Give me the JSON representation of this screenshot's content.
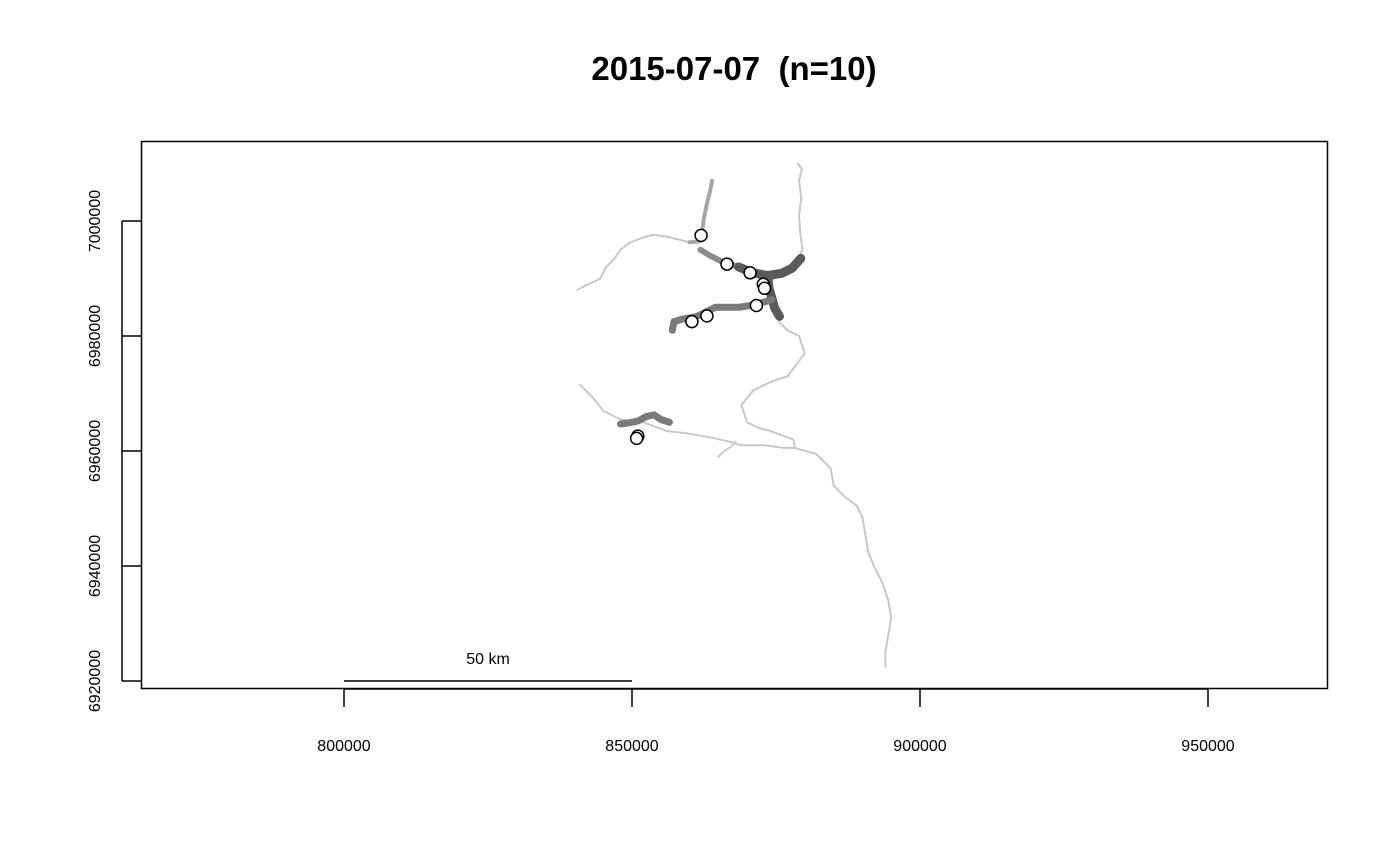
{
  "title": "2015-07-07  (n=10)",
  "chart_data": {
    "type": "scatter",
    "title": "2015-07-07  (n=10)",
    "xlabel": "",
    "ylabel": "",
    "xlim": [
      765000,
      970000
    ],
    "ylim": [
      6918000,
      7011000
    ],
    "x_ticks": [
      {
        "value": 800000,
        "label": "800000"
      },
      {
        "value": 850000,
        "label": "850000"
      },
      {
        "value": 900000,
        "label": "900000"
      },
      {
        "value": 950000,
        "label": "950000"
      }
    ],
    "y_ticks": [
      {
        "value": 6920000,
        "label": "6920000"
      },
      {
        "value": 6940000,
        "label": "6940000"
      },
      {
        "value": 6960000,
        "label": "6960000"
      },
      {
        "value": 6980000,
        "label": "6980000"
      },
      {
        "value": 7000000,
        "label": "7000000"
      }
    ],
    "grid": false,
    "scale_bar": {
      "label": "50 km",
      "x": [
        800000,
        850000
      ],
      "y": 6920000
    },
    "points": [
      {
        "x": 862000,
        "y": 6997500
      },
      {
        "x": 866500,
        "y": 6992500
      },
      {
        "x": 870500,
        "y": 6991000
      },
      {
        "x": 872800,
        "y": 6989000
      },
      {
        "x": 873000,
        "y": 6988300
      },
      {
        "x": 871600,
        "y": 6985300
      },
      {
        "x": 863000,
        "y": 6983500
      },
      {
        "x": 860400,
        "y": 6982500
      },
      {
        "x": 851000,
        "y": 6962600
      },
      {
        "x": 850800,
        "y": 6962200
      }
    ],
    "rivers": [
      {
        "color": "#c8c8c8",
        "width": 2,
        "coords": [
          [
            878800,
            7010000
          ],
          [
            879500,
            7009000
          ],
          [
            879000,
            7007000
          ],
          [
            879400,
            7004000
          ],
          [
            879000,
            7001000
          ],
          [
            879200,
            6998000
          ],
          [
            879600,
            6995000
          ],
          [
            878600,
            6993000
          ],
          [
            876800,
            6991500
          ],
          [
            875000,
            6990500
          ],
          [
            873800,
            6989000
          ],
          [
            874000,
            6987000
          ],
          [
            874500,
            6984500
          ],
          [
            875500,
            6982500
          ],
          [
            877000,
            6981000
          ],
          [
            879000,
            6980000
          ],
          [
            880000,
            6977000
          ],
          [
            878500,
            6975000
          ],
          [
            877000,
            6973000
          ],
          [
            874000,
            6972000
          ],
          [
            871000,
            6970500
          ],
          [
            869000,
            6968000
          ],
          [
            870000,
            6965000
          ],
          [
            872000,
            6964000
          ],
          [
            874000,
            6963500
          ],
          [
            878000,
            6962000
          ],
          [
            878300,
            6960500
          ]
        ]
      },
      {
        "color": "#c8c8c8",
        "width": 2,
        "coords": [
          [
            878300,
            6960500
          ],
          [
            882000,
            6959500
          ],
          [
            884500,
            6957000
          ],
          [
            885000,
            6954000
          ],
          [
            887000,
            6952000
          ],
          [
            889000,
            6950500
          ],
          [
            890000,
            6948500
          ],
          [
            890500,
            6945500
          ],
          [
            891000,
            6942500
          ],
          [
            892000,
            6940000
          ],
          [
            893500,
            6937000
          ],
          [
            894500,
            6934000
          ],
          [
            895000,
            6931000
          ],
          [
            894500,
            6928000
          ],
          [
            894000,
            6925000
          ],
          [
            894000,
            6922500
          ]
        ]
      },
      {
        "color": "#c8c8c8",
        "width": 2,
        "coords": [
          [
            841000,
            6971500
          ],
          [
            843000,
            6969500
          ],
          [
            845000,
            6967000
          ],
          [
            848000,
            6965500
          ],
          [
            852000,
            6965000
          ],
          [
            856000,
            6963500
          ],
          [
            860000,
            6963000
          ],
          [
            864000,
            6962300
          ],
          [
            867000,
            6961600
          ],
          [
            869000,
            6961000
          ],
          [
            873000,
            6961000
          ],
          [
            876000,
            6960600
          ],
          [
            878300,
            6960500
          ]
        ]
      },
      {
        "color": "#c8c8c8",
        "width": 2,
        "coords": [
          [
            860000,
            6996300
          ],
          [
            856000,
            6997300
          ],
          [
            853500,
            6997600
          ],
          [
            851500,
            6997000
          ],
          [
            849500,
            6996200
          ],
          [
            848000,
            6995000
          ],
          [
            847000,
            6993500
          ],
          [
            845500,
            6992000
          ],
          [
            844500,
            6990000
          ],
          [
            843500,
            6989500
          ],
          [
            842000,
            6988800
          ],
          [
            840500,
            6988000
          ]
        ]
      },
      {
        "color": "#c8c8c8",
        "width": 2,
        "coords": [
          [
            868000,
            6961600
          ],
          [
            867000,
            6960600
          ],
          [
            866000,
            6960000
          ],
          [
            865000,
            6959000
          ]
        ]
      },
      {
        "color": "#a6a6a6",
        "width": 4,
        "coords": [
          [
            863900,
            7007000
          ],
          [
            863500,
            7005000
          ],
          [
            863000,
            7003000
          ],
          [
            862500,
            7000500
          ],
          [
            862200,
            6998500
          ],
          [
            861900,
            6996500
          ]
        ]
      },
      {
        "color": "#a6a6a6",
        "width": 4,
        "coords": [
          [
            861900,
            6996500
          ],
          [
            860000,
            6996300
          ]
        ]
      },
      {
        "color": "#8c8c8c",
        "width": 6,
        "coords": [
          [
            861900,
            6995000
          ],
          [
            863500,
            6994000
          ],
          [
            865500,
            6993000
          ],
          [
            868500,
            6992000
          ],
          [
            871000,
            6991000
          ],
          [
            873000,
            6990300
          ],
          [
            875000,
            6990500
          ]
        ]
      },
      {
        "color": "#5a5a5a",
        "width": 9,
        "coords": [
          [
            868500,
            6992000
          ],
          [
            871000,
            6991000
          ],
          [
            873500,
            6990500
          ],
          [
            876000,
            6990900
          ],
          [
            877800,
            6991800
          ],
          [
            879300,
            6993500
          ]
        ]
      },
      {
        "color": "#5a5a5a",
        "width": 9,
        "coords": [
          [
            873500,
            6990500
          ],
          [
            873800,
            6988300
          ],
          [
            874300,
            6986500
          ],
          [
            874800,
            6984800
          ],
          [
            875600,
            6983400
          ]
        ]
      },
      {
        "color": "#7a7a7a",
        "width": 7,
        "coords": [
          [
            857000,
            6981000
          ],
          [
            857300,
            6982500
          ],
          [
            859000,
            6983000
          ],
          [
            861000,
            6983300
          ],
          [
            862500,
            6984000
          ],
          [
            864500,
            6985000
          ],
          [
            866500,
            6985000
          ],
          [
            868500,
            6985000
          ],
          [
            870500,
            6985300
          ],
          [
            872500,
            6985800
          ],
          [
            874300,
            6986300
          ]
        ]
      },
      {
        "color": "#7a7a7a",
        "width": 7,
        "coords": [
          [
            848000,
            6964700
          ],
          [
            849500,
            6964900
          ],
          [
            851000,
            6965200
          ],
          [
            852500,
            6966000
          ],
          [
            853800,
            6966300
          ],
          [
            855000,
            6965500
          ],
          [
            856500,
            6965000
          ]
        ]
      }
    ]
  }
}
